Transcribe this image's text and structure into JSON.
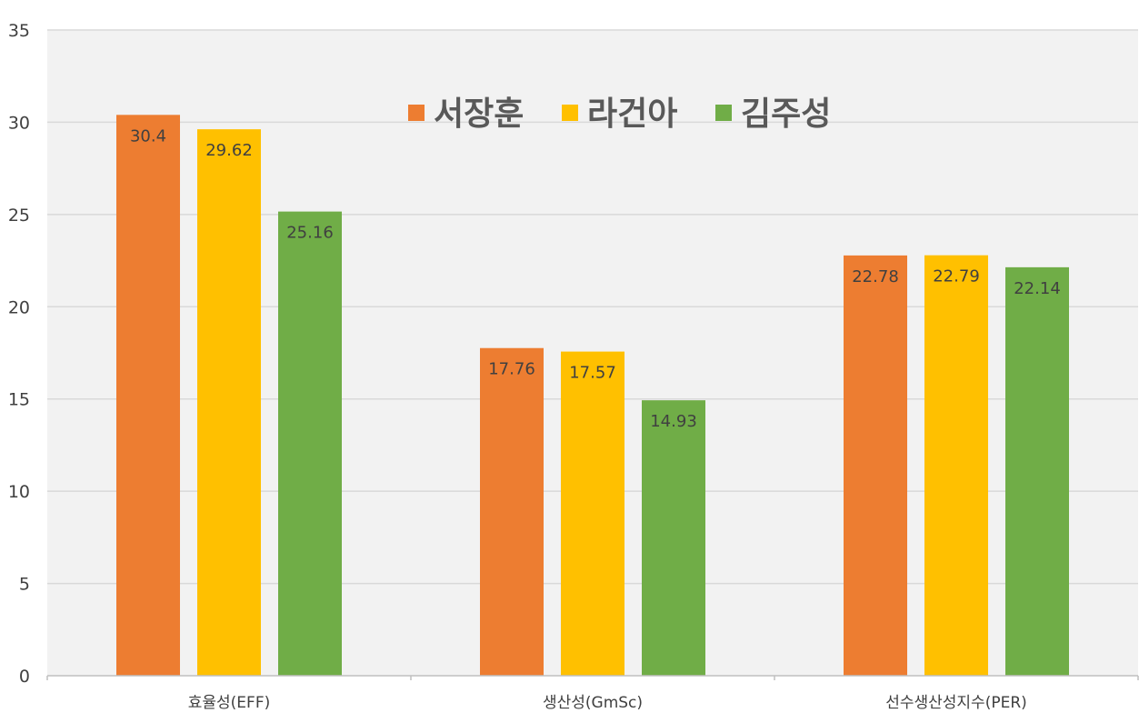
{
  "chart_data": {
    "type": "bar",
    "categories": [
      "효율성(EFF)",
      "생산성(GmSc)",
      "선수생산성지수(PER)"
    ],
    "series": [
      {
        "name": "서장훈",
        "color": "#ED7D31",
        "values": [
          30.4,
          17.76,
          22.78
        ]
      },
      {
        "name": "라건아",
        "color": "#FFC000",
        "values": [
          29.62,
          17.57,
          22.79
        ]
      },
      {
        "name": "김주성",
        "color": "#70AD47",
        "values": [
          25.16,
          14.93,
          22.14
        ]
      }
    ],
    "data_labels": [
      [
        "30.4",
        "17.76",
        "22.78"
      ],
      [
        "29.62",
        "17.57",
        "22.79"
      ],
      [
        "25.16",
        "14.93",
        "22.14"
      ]
    ],
    "yticks": [
      "0",
      "5",
      "10",
      "15",
      "20",
      "25",
      "30",
      "35"
    ],
    "ylim": [
      0,
      35
    ],
    "grid": true,
    "legend_position": "top-center",
    "plot_background": "#F2F2F2",
    "gridline_color": "#D9D9D9"
  }
}
